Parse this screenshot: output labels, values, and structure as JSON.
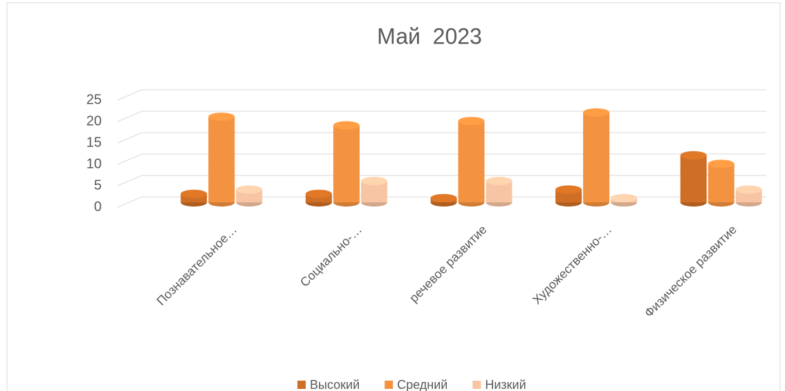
{
  "chart_data": {
    "type": "bar3d",
    "title": "Май  2023",
    "categories": [
      "Познавательное…",
      "Социально-…",
      "речевое развитие",
      "Художественно-…",
      "Физическое развитие"
    ],
    "series": [
      {
        "name": "Высокий",
        "color": "#cf6f25",
        "values": [
          2,
          2,
          1,
          3,
          11
        ]
      },
      {
        "name": "Средний",
        "color": "#f39240",
        "values": [
          20,
          18,
          19,
          21,
          9
        ]
      },
      {
        "name": "Низкий",
        "color": "#f7c5a3",
        "values": [
          3,
          5,
          5,
          1,
          3
        ]
      }
    ],
    "ylim": [
      0,
      25
    ],
    "yticks": [
      0,
      5,
      10,
      15,
      20,
      25
    ],
    "grid": true,
    "legend": "bottom"
  }
}
